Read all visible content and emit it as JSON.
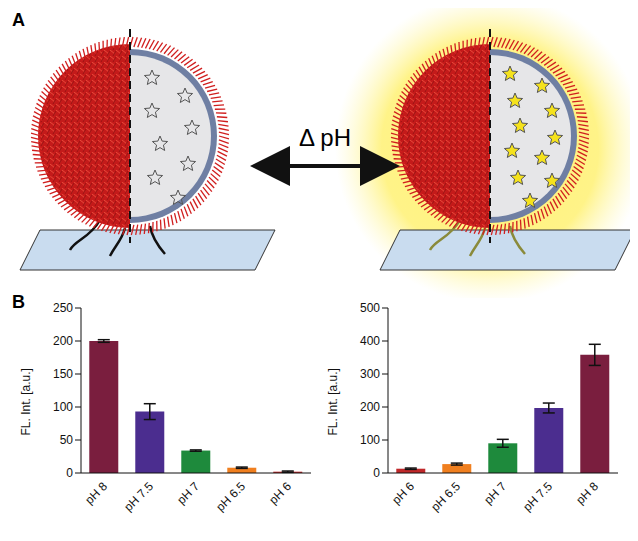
{
  "diagram": {
    "panel_label": "A",
    "arrow_label": "Δ pH"
  },
  "charts_panel_label": "B",
  "chart_data": [
    {
      "type": "bar",
      "y_label": "FL. Int. [a.u.]",
      "categories": [
        "pH 8",
        "pH 7.5",
        "pH 7",
        "pH 6.5",
        "pH 6"
      ],
      "values": [
        200,
        93,
        34,
        8,
        2
      ],
      "errors": [
        2,
        12,
        1,
        1,
        1
      ],
      "colors": [
        "#7a1e3e",
        "#4b2d8f",
        "#1e8a3c",
        "#f07f1f",
        "#c0282a"
      ],
      "ylim": [
        0,
        250
      ],
      "yticks": [
        0,
        50,
        100,
        150,
        200,
        250
      ],
      "grid": false
    },
    {
      "type": "bar",
      "y_label": "FL. Int. [a.u.]",
      "categories": [
        "pH 6",
        "pH 6.5",
        "pH 7",
        "pH 7.5",
        "pH 8"
      ],
      "values": [
        13,
        27,
        90,
        197,
        358
      ],
      "errors": [
        2,
        3,
        12,
        15,
        32
      ],
      "colors": [
        "#c0282a",
        "#f07f1f",
        "#1e8a3c",
        "#4b2d8f",
        "#7a1e3e"
      ],
      "ylim": [
        0,
        500
      ],
      "yticks": [
        0,
        100,
        200,
        300,
        400,
        500
      ],
      "grid": false
    }
  ]
}
